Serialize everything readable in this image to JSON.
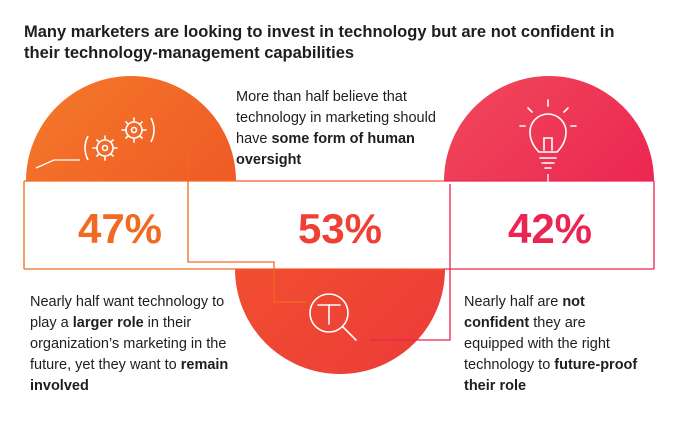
{
  "title": "Many marketers are looking to invest in technology but are not confident in their technology-management capabilities",
  "colors": {
    "orange": "#f26a21",
    "red": "#ef4033",
    "pink": "#ec2452",
    "text": "#1e1e1e"
  },
  "stats": [
    {
      "value": "47%",
      "icon": "gears-icon",
      "text": [
        {
          "t": "Nearly half want technology to play a ",
          "b": false
        },
        {
          "t": "larger role",
          "b": true
        },
        {
          "t": " in their organization’s marketing in the future, yet they want to ",
          "b": false
        },
        {
          "t": "remain involved",
          "b": true
        }
      ]
    },
    {
      "value": "53%",
      "icon": "magnifier-icon",
      "text": [
        {
          "t": "More than half believe that technology in marketing should have ",
          "b": false
        },
        {
          "t": "some form of human oversight",
          "b": true
        }
      ]
    },
    {
      "value": "42%",
      "icon": "lightbulb-icon",
      "text": [
        {
          "t": "Nearly half are ",
          "b": false
        },
        {
          "t": "not confident",
          "b": true
        },
        {
          "t": " they are equipped with the right technology to ",
          "b": false
        },
        {
          "t": "future-proof their role",
          "b": true
        }
      ]
    }
  ]
}
